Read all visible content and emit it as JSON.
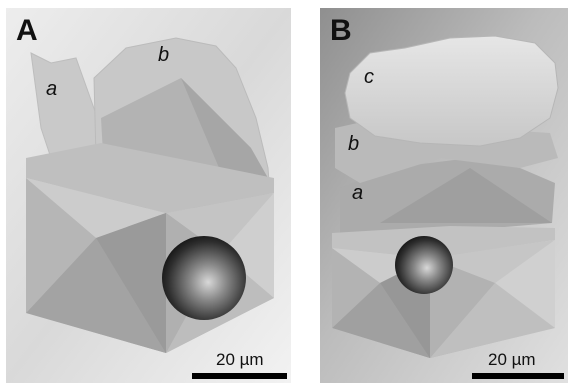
{
  "panels": [
    {
      "id": "A",
      "label": "A",
      "layers": [
        "a",
        "b"
      ],
      "scale_bar": "20 µm"
    },
    {
      "id": "B",
      "label": "B",
      "layers": [
        "a",
        "b",
        "c"
      ],
      "scale_bar": "20 µm"
    }
  ]
}
